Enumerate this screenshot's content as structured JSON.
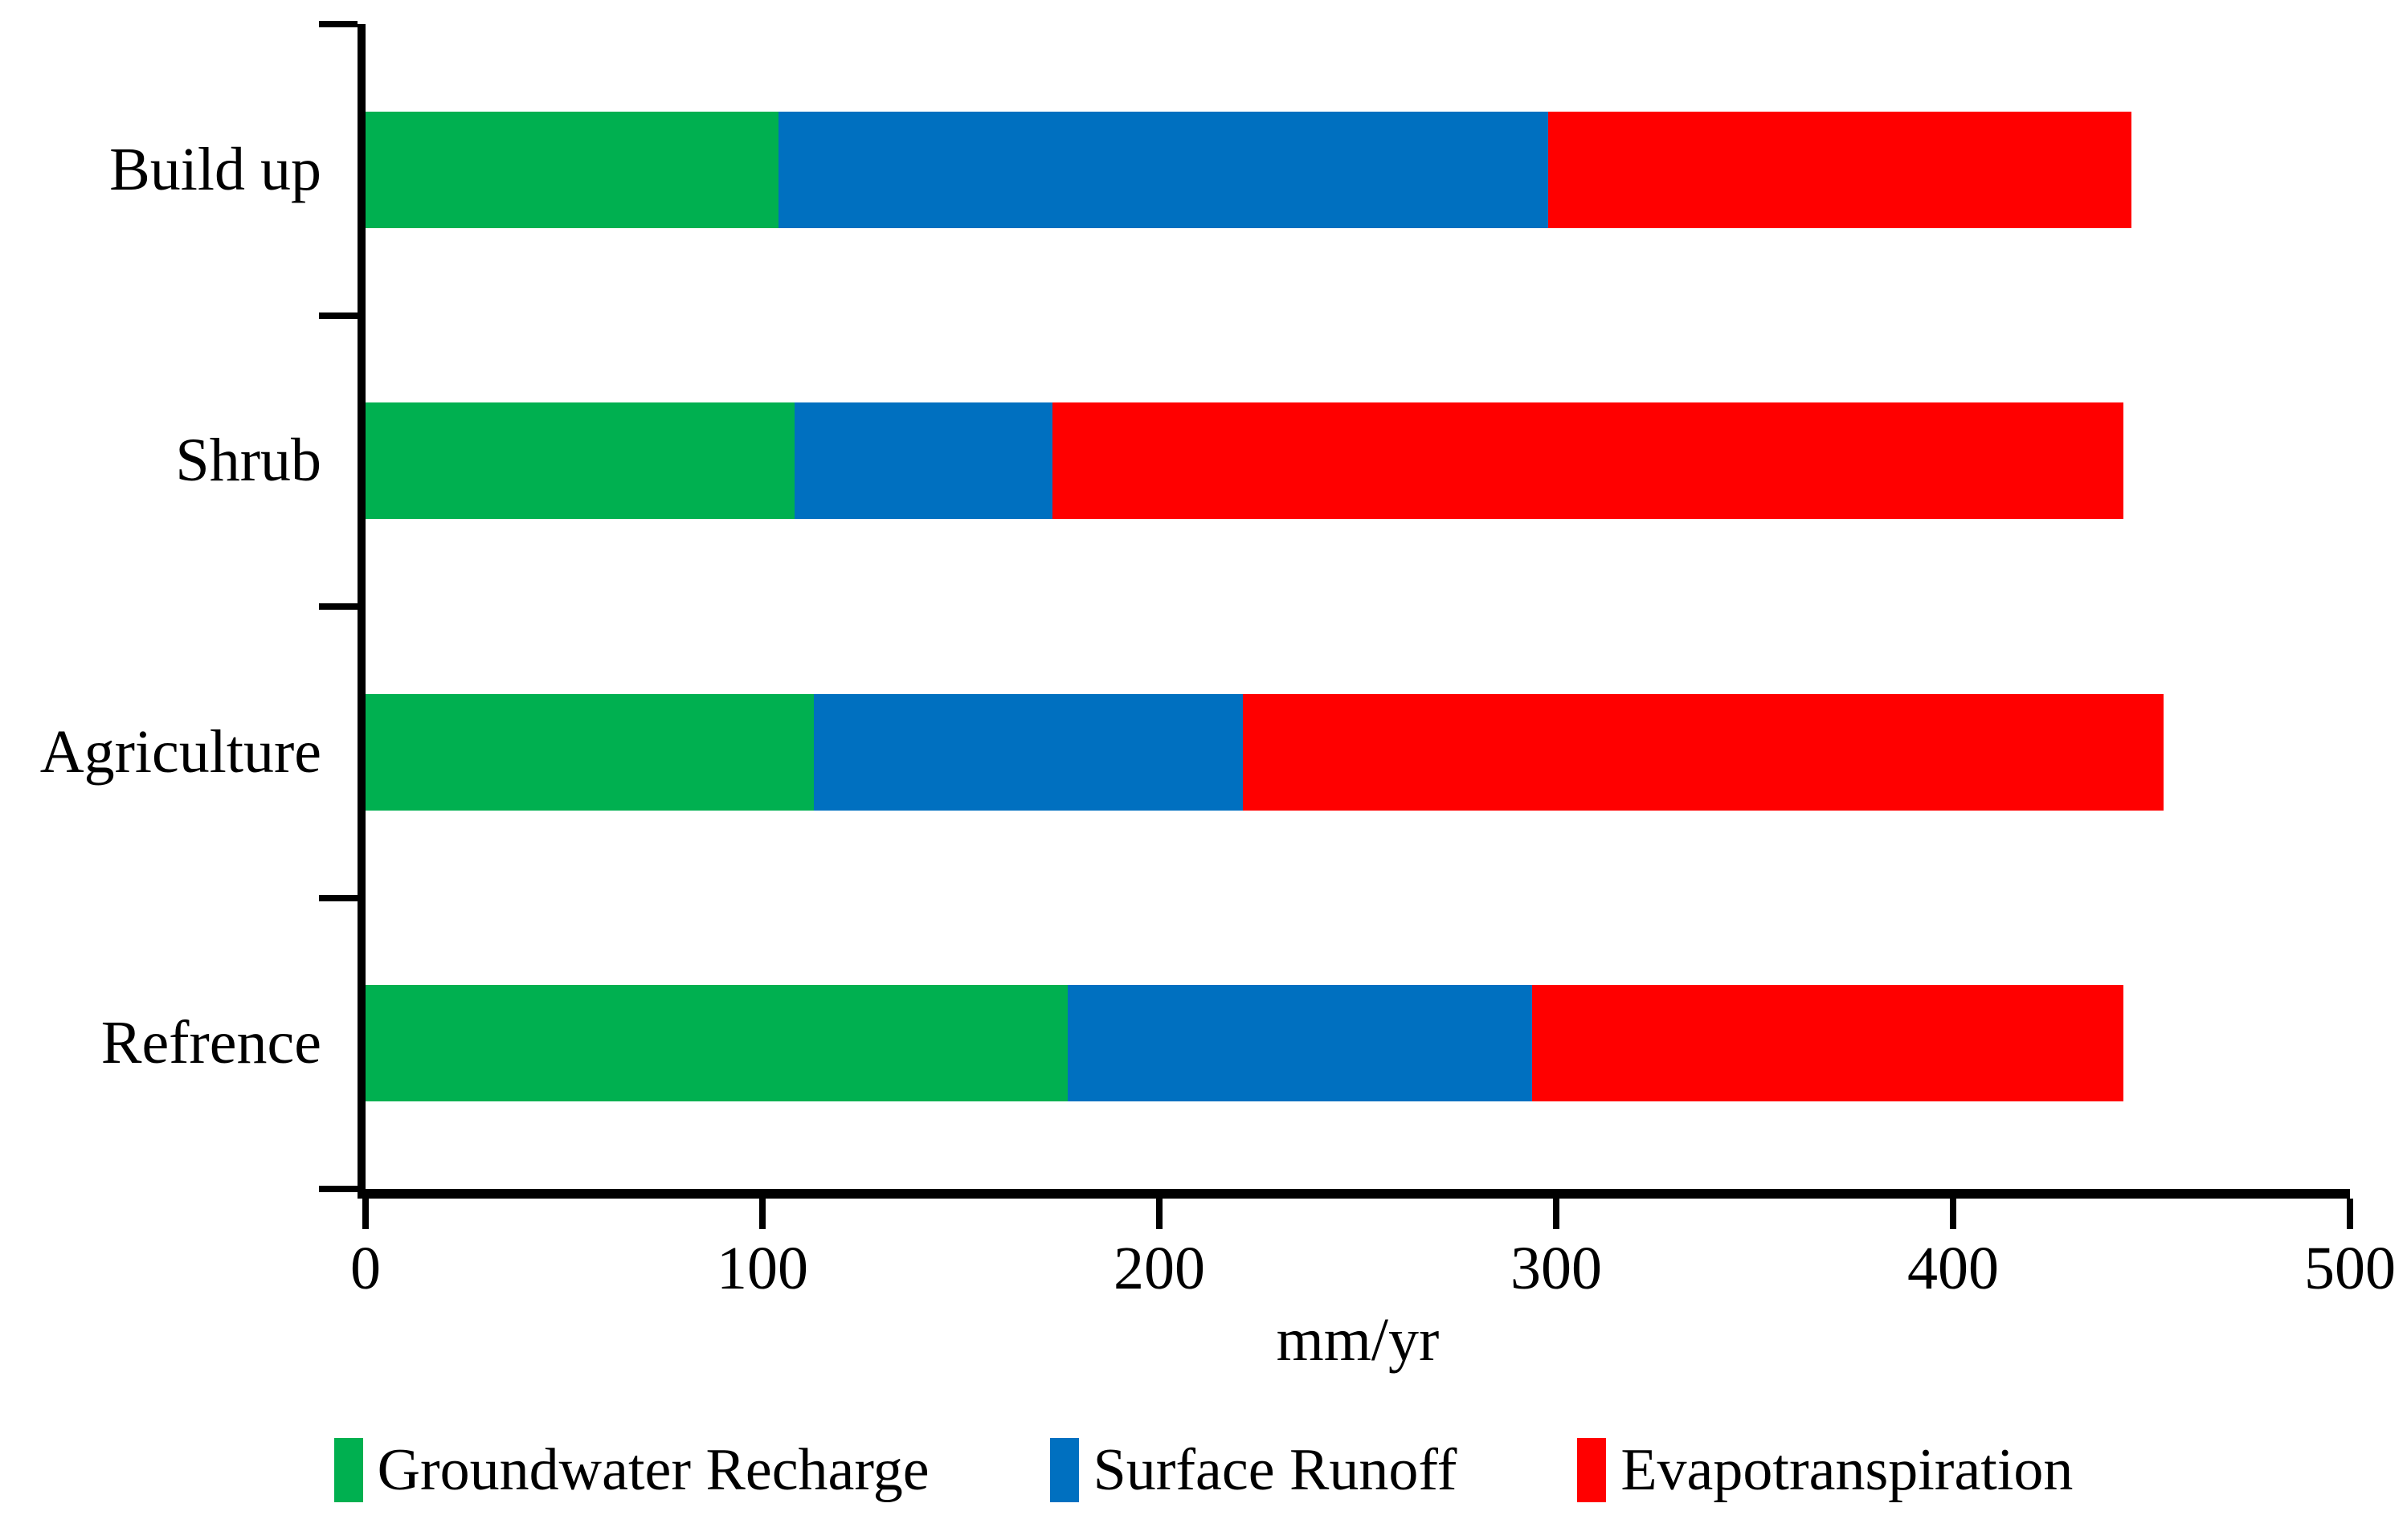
{
  "figure": {
    "background_color": "#ffffff",
    "axis_color": "#000000"
  },
  "chart_data": {
    "type": "bar",
    "orientation": "horizontal",
    "stacked": true,
    "title": "",
    "xlabel": "mm/yr",
    "ylabel": "",
    "xlim": [
      0,
      500
    ],
    "xticks": [
      0,
      100,
      200,
      300,
      400,
      500
    ],
    "grid": false,
    "legend_position": "bottom",
    "categories": [
      "Build up",
      "Shrub",
      "Agriculture",
      "Refrence"
    ],
    "series": [
      {
        "name": "Groundwater Recharge",
        "color": "#00B050",
        "values": [
          104,
          108,
          113,
          177
        ]
      },
      {
        "name": "Surface Runoff",
        "color": "#0070C0",
        "values": [
          194,
          65,
          108,
          117
        ]
      },
      {
        "name": "Evapotranspiration",
        "color": "#FF0000",
        "values": [
          147,
          270,
          232,
          149
        ]
      }
    ],
    "totals": [
      445,
      443,
      453,
      443
    ]
  }
}
